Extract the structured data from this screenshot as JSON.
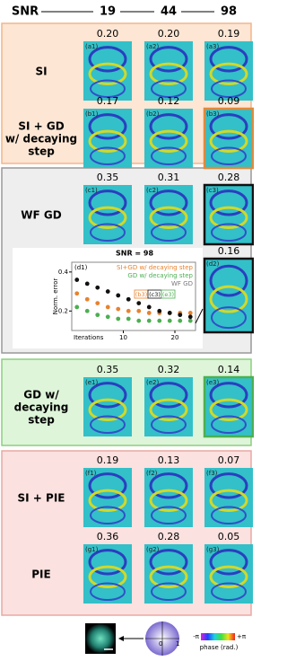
{
  "header": {
    "snr_label": "SNR",
    "snr_values": [
      "19",
      "44",
      "98"
    ]
  },
  "rows": [
    {
      "label": [
        "SI"
      ],
      "panels": [
        {
          "tag": "(a1)",
          "error": "0.20"
        },
        {
          "tag": "(a2)",
          "error": "0.20"
        },
        {
          "tag": "(a3)",
          "error": "0.19"
        }
      ]
    },
    {
      "label": [
        "SI + GD",
        "w/ decaying",
        "step"
      ],
      "panels": [
        {
          "tag": "(b1)",
          "error": "0.17"
        },
        {
          "tag": "(b2)",
          "error": "0.12"
        },
        {
          "tag": "(b3)",
          "error": "0.09",
          "border": "#e08a3c"
        }
      ]
    },
    {
      "label": [
        "WF GD"
      ],
      "panels": [
        {
          "tag": "(c1)",
          "error": "0.35"
        },
        {
          "tag": "(c2)",
          "error": "0.31"
        },
        {
          "tag": "(c3)",
          "error": "0.28",
          "border": "#111111"
        }
      ]
    },
    {
      "label": [
        "GD w/",
        "decaying",
        "step"
      ],
      "panels": [
        {
          "tag": "(e1)",
          "error": "0.35"
        },
        {
          "tag": "(e2)",
          "error": "0.32"
        },
        {
          "tag": "(e3)",
          "error": "0.14",
          "border": "#4caf50"
        }
      ]
    },
    {
      "label": [
        "SI + PIE"
      ],
      "panels": [
        {
          "tag": "(f1)",
          "error": "0.19"
        },
        {
          "tag": "(f2)",
          "error": "0.13"
        },
        {
          "tag": "(f3)",
          "error": "0.07"
        }
      ]
    },
    {
      "label": [
        "PIE"
      ],
      "panels": [
        {
          "tag": "(g1)",
          "error": "0.36"
        },
        {
          "tag": "(g2)",
          "error": "0.28"
        },
        {
          "tag": "(g3)",
          "error": "0.05"
        }
      ]
    }
  ],
  "d2": {
    "tag": "(d2)",
    "error": "0.16",
    "border": "#111111"
  },
  "inset_chart": {
    "type": "line",
    "tag": "(d1)",
    "title": "SNR = 98",
    "ylabel": "Norm. error",
    "xlabel": "Iterations",
    "x": [
      1,
      3,
      5,
      7,
      9,
      11,
      13,
      15,
      17,
      19,
      21,
      23
    ],
    "xlim": [
      0,
      24
    ],
    "ylim": [
      0.1,
      0.45
    ],
    "xticks": [
      10,
      20
    ],
    "yticks": [
      0.2,
      0.4
    ],
    "series": [
      {
        "name": "SI+GD w/ decaying step",
        "color": "#e8822e",
        "values": [
          0.29,
          0.26,
          0.24,
          0.22,
          0.21,
          0.2,
          0.2,
          0.19,
          0.19,
          0.19,
          0.19,
          0.19
        ]
      },
      {
        "name": "GD w/ decaying step",
        "color": "#4caf50",
        "values": [
          0.22,
          0.2,
          0.18,
          0.17,
          0.16,
          0.16,
          0.15,
          0.15,
          0.15,
          0.15,
          0.15,
          0.15
        ]
      },
      {
        "name": "WF GD",
        "color": "#111111",
        "values": [
          0.36,
          0.34,
          0.32,
          0.3,
          0.28,
          0.26,
          0.24,
          0.22,
          0.2,
          0.19,
          0.18,
          0.17
        ]
      }
    ],
    "marker_labels": [
      "(b3)",
      "(c3)",
      "(e3)"
    ]
  },
  "bottom": {
    "phase_min": "-π",
    "phase_max": "+π",
    "phase_label": "phase (rad.)",
    "amp_min": "0",
    "amp_max": "1"
  }
}
